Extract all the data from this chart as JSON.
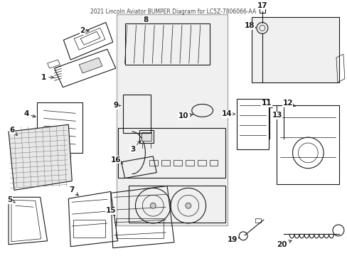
{
  "title": "2021 Lincoln Aviator BUMPER Diagram for LC5Z-7806066-AA",
  "bg": "#ffffff",
  "lc": "#1a1a1a",
  "lc_light": "#888888",
  "fig_w": 4.89,
  "fig_h": 3.6,
  "dpi": 100
}
